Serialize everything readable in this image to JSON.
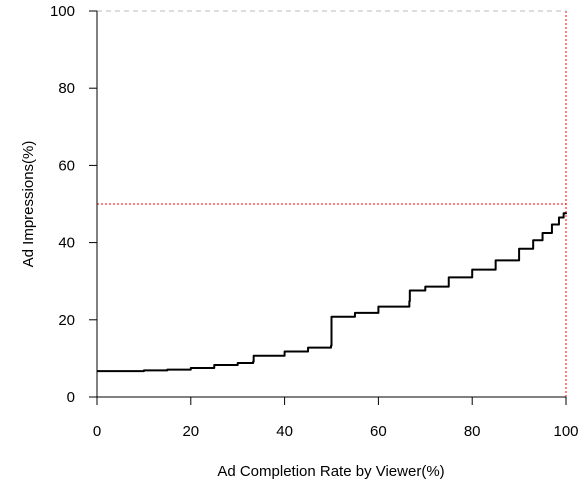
{
  "chart_data": {
    "type": "line",
    "xlabel": "Ad Completion Rate by Viewer(%)",
    "ylabel": "Ad Impressions(%)",
    "xlim": [
      0,
      100
    ],
    "ylim": [
      0,
      100
    ],
    "x_ticks": [
      "0",
      "20",
      "40",
      "60",
      "80",
      "100"
    ],
    "y_ticks": [
      "0",
      "20",
      "40",
      "60",
      "80",
      "100"
    ],
    "grid": false,
    "series": [
      {
        "color": "#000000",
        "style": "step",
        "x": [
          0,
          10,
          15,
          20,
          25,
          30,
          33.3,
          33.4,
          40,
          45,
          49.9,
          50,
          55,
          60,
          66.6,
          66.7,
          70,
          75,
          80,
          85,
          90,
          93,
          95,
          97,
          98.5,
          99.5,
          100
        ],
        "y": [
          6.7,
          6.9,
          7.1,
          7.5,
          8.3,
          8.8,
          9.2,
          10.7,
          11.8,
          12.8,
          13.3,
          20.8,
          21.8,
          23.4,
          24.8,
          27.6,
          28.6,
          31.0,
          33.0,
          35.4,
          38.4,
          40.6,
          42.5,
          44.7,
          46.5,
          47.6,
          47.8
        ]
      }
    ],
    "reference_lines": [
      {
        "orientation": "horizontal",
        "value": 50,
        "color": "#ff0000",
        "dash": "dotted"
      },
      {
        "orientation": "vertical",
        "value": 100,
        "color": "#ff0000",
        "dash": "dotted"
      },
      {
        "orientation": "horizontal",
        "value": 100,
        "color": "#bbbbbb",
        "dash": "dashed"
      }
    ]
  }
}
